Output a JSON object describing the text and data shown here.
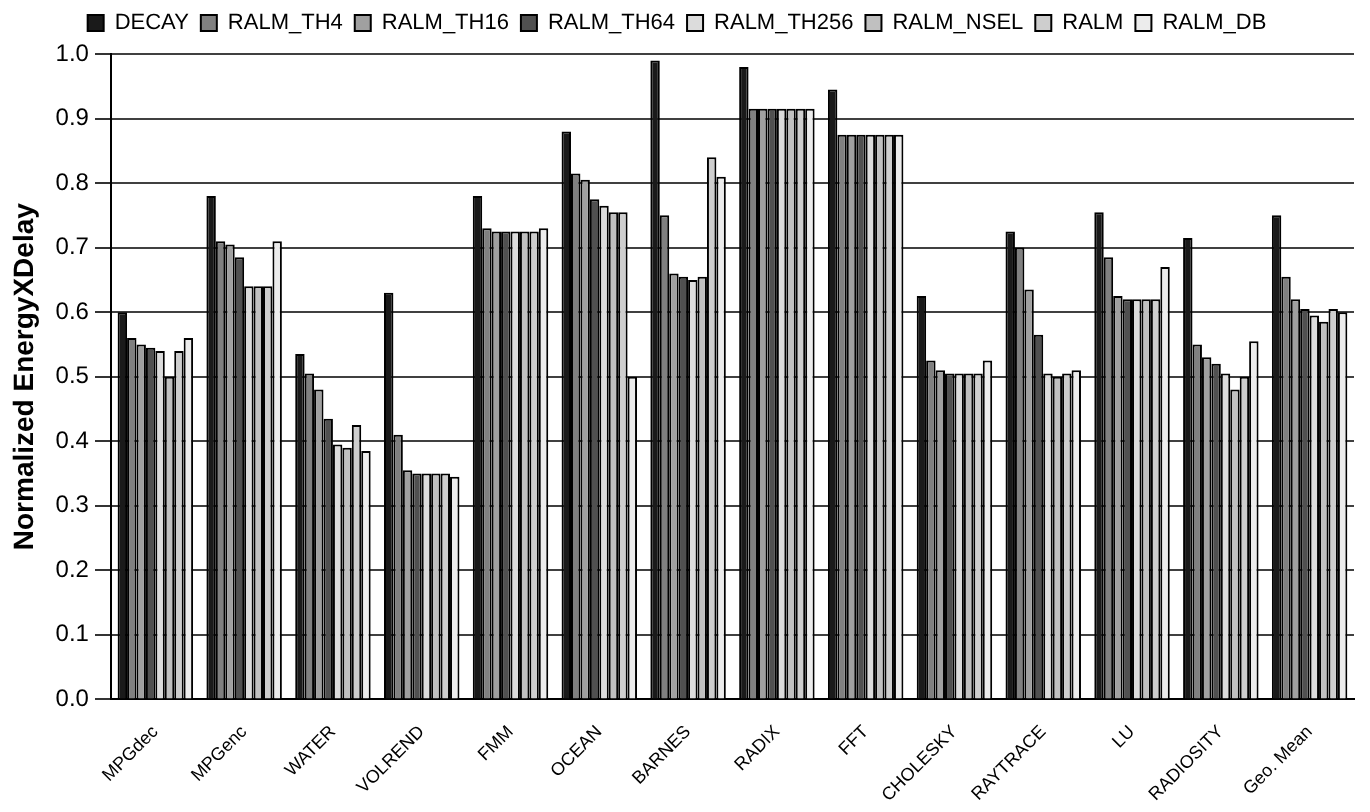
{
  "chart_data": {
    "type": "bar",
    "ylabel": "Normalized EnergyXDelay",
    "categories": [
      "MPGdec",
      "MPGenc",
      "WATER",
      "VOLREND",
      "FMM",
      "OCEAN",
      "BARNES",
      "RADIX",
      "FFT",
      "CHOLESKY",
      "RAYTRACE",
      "LU",
      "RADIOSITY",
      "Geo. Mean"
    ],
    "series": [
      {
        "name": "DECAY",
        "color": "#1a1a1a",
        "values": [
          0.6,
          0.78,
          0.535,
          0.63,
          0.78,
          0.88,
          0.99,
          0.98,
          0.945,
          0.625,
          0.725,
          0.755,
          0.715,
          0.75
        ]
      },
      {
        "name": "RALM_TH4",
        "color": "#808080",
        "values": [
          0.56,
          0.71,
          0.505,
          0.41,
          0.73,
          0.815,
          0.75,
          0.915,
          0.875,
          0.525,
          0.7,
          0.685,
          0.55,
          0.655
        ]
      },
      {
        "name": "RALM_TH16",
        "color": "#a0a0a0",
        "values": [
          0.55,
          0.705,
          0.48,
          0.355,
          0.725,
          0.805,
          0.66,
          0.915,
          0.875,
          0.51,
          0.635,
          0.625,
          0.53,
          0.62
        ]
      },
      {
        "name": "RALM_TH64",
        "color": "#505050",
        "values": [
          0.545,
          0.685,
          0.435,
          0.35,
          0.725,
          0.775,
          0.655,
          0.915,
          0.875,
          0.505,
          0.565,
          0.62,
          0.52,
          0.605
        ]
      },
      {
        "name": "RALM_TH256",
        "color": "#dcdcdc",
        "values": [
          0.54,
          0.64,
          0.395,
          0.35,
          0.725,
          0.765,
          0.65,
          0.915,
          0.875,
          0.505,
          0.505,
          0.62,
          0.505,
          0.595
        ]
      },
      {
        "name": "RALM_NSEL",
        "color": "#c0c0c0",
        "values": [
          0.5,
          0.64,
          0.39,
          0.35,
          0.725,
          0.755,
          0.655,
          0.915,
          0.875,
          0.505,
          0.5,
          0.62,
          0.48,
          0.585
        ]
      },
      {
        "name": "RALM",
        "color": "#cecece",
        "values": [
          0.54,
          0.64,
          0.425,
          0.35,
          0.725,
          0.755,
          0.84,
          0.915,
          0.875,
          0.505,
          0.505,
          0.62,
          0.5,
          0.605
        ]
      },
      {
        "name": "RALM_DB",
        "color": "#ececec",
        "values": [
          0.56,
          0.71,
          0.385,
          0.345,
          0.73,
          0.5,
          0.81,
          0.915,
          0.875,
          0.525,
          0.51,
          0.67,
          0.555,
          0.6
        ]
      }
    ],
    "ylim": [
      0,
      1
    ],
    "yticks": [
      {
        "value": 0,
        "label": "0.0"
      },
      0.1,
      0.2,
      0.3,
      0.4,
      0.5,
      0.6,
      0.7,
      0.8,
      0.9,
      {
        "value": 1,
        "label": "1.0"
      }
    ],
    "grid": "y",
    "legend": "top"
  }
}
